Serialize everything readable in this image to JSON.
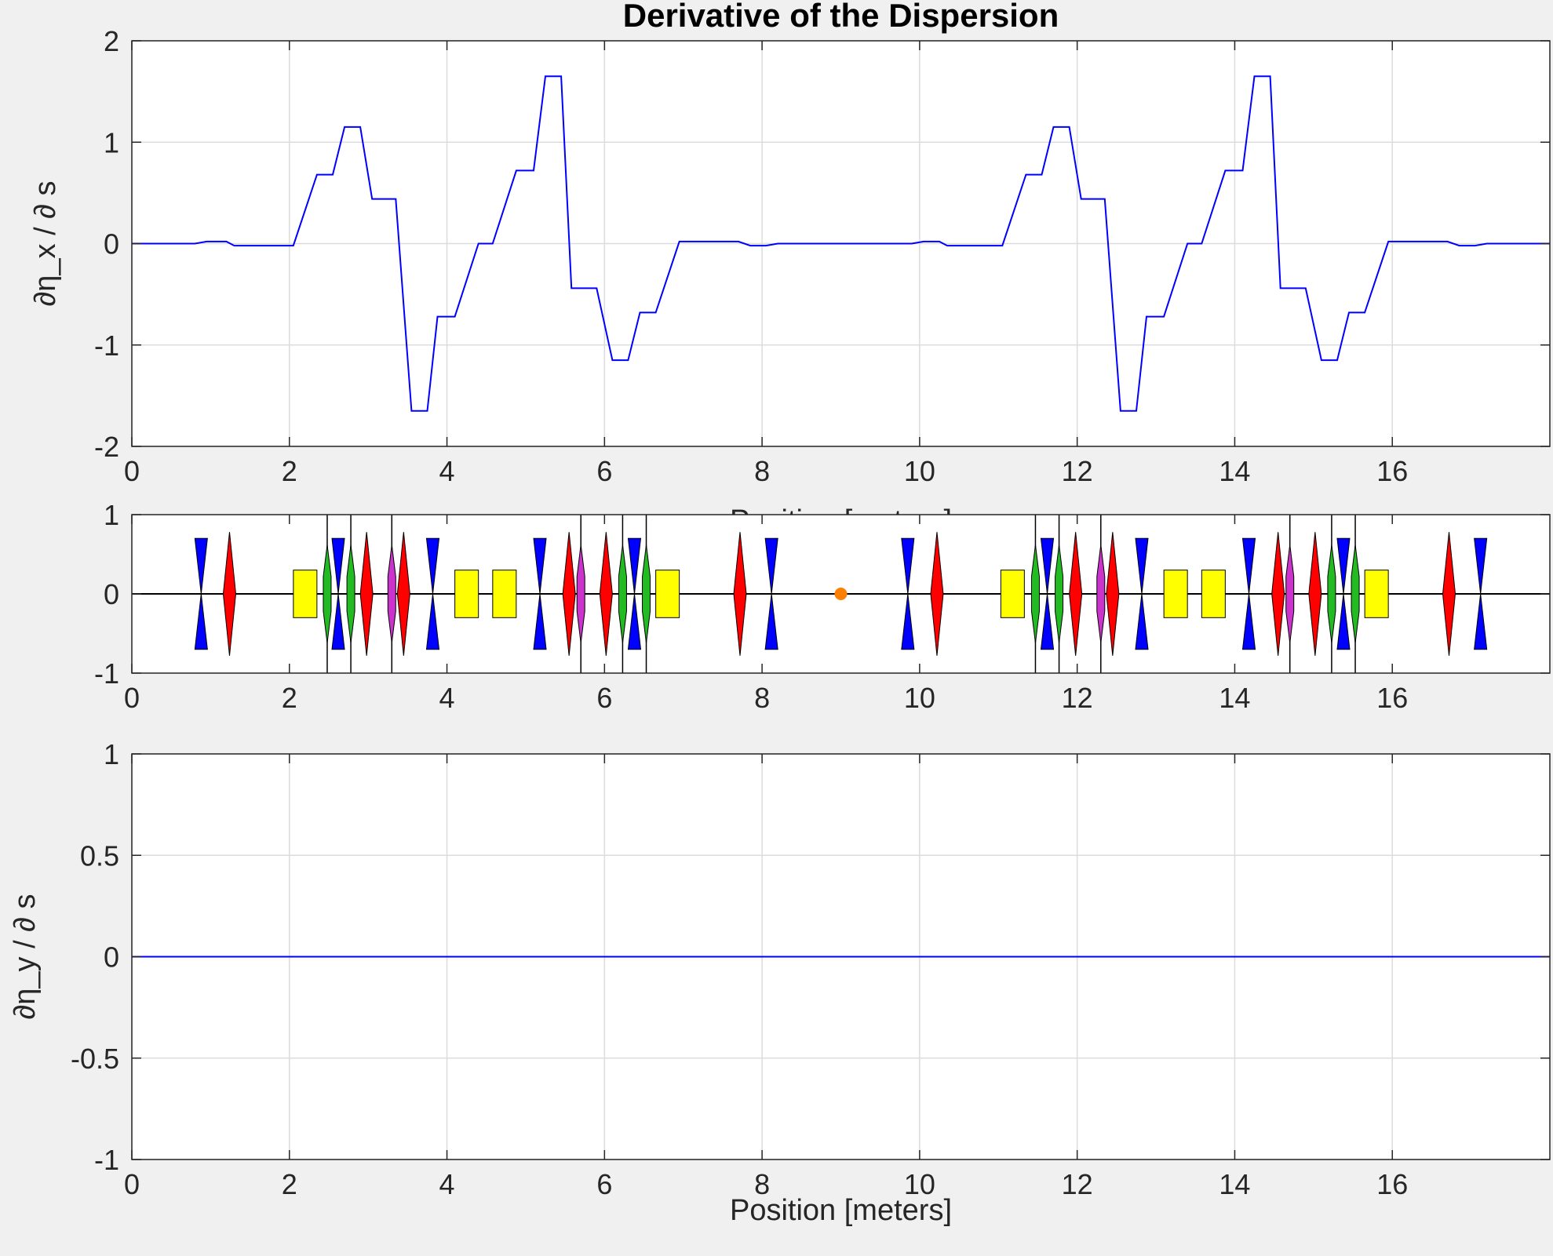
{
  "chart_data": [
    {
      "type": "line",
      "title": "Derivative of the Dispersion",
      "ylabel": "∂η_x / ∂ s",
      "xlabel": "Position [meters]",
      "xlim": [
        0,
        18
      ],
      "ylim": [
        -2,
        2
      ],
      "xticks": [
        0,
        2,
        4,
        6,
        8,
        10,
        12,
        14,
        16
      ],
      "xtick_labels": [
        "0",
        "2",
        "4",
        "6",
        "8",
        "10",
        "12",
        "14",
        "16"
      ],
      "yticks": [
        -2,
        -1,
        0,
        1,
        2
      ],
      "ytick_labels": [
        "-2",
        "-1",
        "0",
        "1",
        "2"
      ],
      "grid": true,
      "color": "#0000ff",
      "series": [
        {
          "x": [
            0,
            0.8,
            0.95,
            1.2,
            1.3,
            2.05,
            2.35,
            2.55,
            2.7,
            2.9,
            3.05,
            3.35,
            3.55,
            3.75,
            3.88,
            4.1,
            4.4,
            4.58,
            4.88,
            5.1,
            5.25,
            5.45,
            5.58,
            5.9,
            6.1,
            6.3,
            6.45,
            6.65,
            6.95,
            7.7,
            7.85,
            8.05,
            8.2,
            9.9,
            10.05,
            10.25,
            10.35,
            11.05,
            11.35,
            11.55,
            11.7,
            11.9,
            12.05,
            12.35,
            12.55,
            12.75,
            12.88,
            13.1,
            13.4,
            13.58,
            13.88,
            14.1,
            14.25,
            14.45,
            14.58,
            14.9,
            15.1,
            15.3,
            15.45,
            15.65,
            15.95,
            16.7,
            16.85,
            17.05,
            17.2,
            18
          ],
          "y": [
            0,
            0,
            0.02,
            0.02,
            -0.02,
            -0.02,
            0.68,
            0.68,
            1.15,
            1.15,
            0.44,
            0.44,
            -1.65,
            -1.65,
            -0.72,
            -0.72,
            0,
            0,
            0.72,
            0.72,
            1.65,
            1.65,
            -0.44,
            -0.44,
            -1.15,
            -1.15,
            -0.68,
            -0.68,
            0.02,
            0.02,
            -0.02,
            -0.02,
            0,
            0,
            0.02,
            0.02,
            -0.02,
            -0.02,
            0.68,
            0.68,
            1.15,
            1.15,
            0.44,
            0.44,
            -1.65,
            -1.65,
            -0.72,
            -0.72,
            0,
            0,
            0.72,
            0.72,
            1.65,
            1.65,
            -0.44,
            -0.44,
            -1.15,
            -1.15,
            -0.68,
            -0.68,
            0.02,
            0.02,
            -0.02,
            -0.02,
            0,
            0
          ]
        }
      ]
    },
    {
      "type": "lattice",
      "xlim": [
        0,
        18
      ],
      "ylim": [
        -1,
        1
      ],
      "xticks": [
        0,
        2,
        4,
        6,
        8,
        10,
        12,
        14,
        16
      ],
      "xtick_labels": [
        "0",
        "2",
        "4",
        "6",
        "8",
        "10",
        "12",
        "14",
        "16"
      ],
      "yticks": [
        -1,
        0,
        1
      ],
      "ytick_labels": [
        "-1",
        "0",
        "1"
      ],
      "element_colors": {
        "focusing_quad": "#ff0000",
        "defocusing_quad": "#0000ff",
        "sextupole": "#22bb22",
        "octupole": "#cc33cc",
        "dipole": "#ffff00",
        "marker": "#ff8000"
      },
      "elements": [
        {
          "kind": "defocusing_quad",
          "s": 0.88
        },
        {
          "kind": "focusing_quad",
          "s": 1.24
        },
        {
          "kind": "dipole",
          "s": 2.2
        },
        {
          "kind": "sextupole",
          "s": 2.48,
          "marker_line": true
        },
        {
          "kind": "defocusing_quad",
          "s": 2.62
        },
        {
          "kind": "sextupole",
          "s": 2.78,
          "marker_line": true
        },
        {
          "kind": "focusing_quad",
          "s": 2.98
        },
        {
          "kind": "octupole",
          "s": 3.3,
          "marker_line": true
        },
        {
          "kind": "focusing_quad",
          "s": 3.45
        },
        {
          "kind": "defocusing_quad",
          "s": 3.82
        },
        {
          "kind": "dipole",
          "s": 4.25
        },
        {
          "kind": "dipole",
          "s": 4.73
        },
        {
          "kind": "defocusing_quad",
          "s": 5.18
        },
        {
          "kind": "focusing_quad",
          "s": 5.55
        },
        {
          "kind": "octupole",
          "s": 5.7,
          "marker_line": true
        },
        {
          "kind": "focusing_quad",
          "s": 6.02
        },
        {
          "kind": "sextupole",
          "s": 6.23,
          "marker_line": true
        },
        {
          "kind": "defocusing_quad",
          "s": 6.38
        },
        {
          "kind": "sextupole",
          "s": 6.53,
          "marker_line": true
        },
        {
          "kind": "dipole",
          "s": 6.8
        },
        {
          "kind": "focusing_quad",
          "s": 7.72
        },
        {
          "kind": "defocusing_quad",
          "s": 8.12
        },
        {
          "kind": "marker",
          "s": 9.0
        },
        {
          "kind": "defocusing_quad",
          "s": 9.85
        },
        {
          "kind": "focusing_quad",
          "s": 10.22
        },
        {
          "kind": "dipole",
          "s": 11.18
        },
        {
          "kind": "sextupole",
          "s": 11.47,
          "marker_line": true
        },
        {
          "kind": "defocusing_quad",
          "s": 11.62
        },
        {
          "kind": "sextupole",
          "s": 11.77,
          "marker_line": true
        },
        {
          "kind": "focusing_quad",
          "s": 11.98
        },
        {
          "kind": "octupole",
          "s": 12.3,
          "marker_line": true
        },
        {
          "kind": "focusing_quad",
          "s": 12.45
        },
        {
          "kind": "defocusing_quad",
          "s": 12.82
        },
        {
          "kind": "dipole",
          "s": 13.25
        },
        {
          "kind": "dipole",
          "s": 13.73
        },
        {
          "kind": "defocusing_quad",
          "s": 14.18
        },
        {
          "kind": "focusing_quad",
          "s": 14.55
        },
        {
          "kind": "octupole",
          "s": 14.7,
          "marker_line": true
        },
        {
          "kind": "focusing_quad",
          "s": 15.02
        },
        {
          "kind": "sextupole",
          "s": 15.23,
          "marker_line": true
        },
        {
          "kind": "defocusing_quad",
          "s": 15.38
        },
        {
          "kind": "sextupole",
          "s": 15.53,
          "marker_line": true
        },
        {
          "kind": "dipole",
          "s": 15.8
        },
        {
          "kind": "focusing_quad",
          "s": 16.72
        },
        {
          "kind": "defocusing_quad",
          "s": 17.12
        }
      ]
    },
    {
      "type": "line",
      "ylabel": "∂η_y / ∂ s",
      "xlabel": "Position [meters]",
      "xlim": [
        0,
        18
      ],
      "ylim": [
        -1,
        1
      ],
      "xticks": [
        0,
        2,
        4,
        6,
        8,
        10,
        12,
        14,
        16
      ],
      "xtick_labels": [
        "0",
        "2",
        "4",
        "6",
        "8",
        "10",
        "12",
        "14",
        "16"
      ],
      "yticks": [
        -1,
        -0.5,
        0,
        0.5,
        1
      ],
      "ytick_labels": [
        "-1",
        "-0.5",
        "0",
        "0.5",
        "1"
      ],
      "grid": true,
      "color": "#0000ff",
      "series": [
        {
          "x": [
            0,
            18
          ],
          "y": [
            0,
            0
          ]
        }
      ]
    }
  ]
}
